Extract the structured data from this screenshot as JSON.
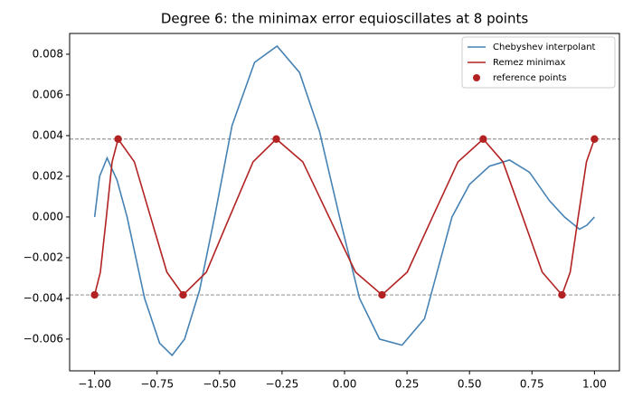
{
  "chart_data": {
    "type": "line",
    "title": "Degree 6: the minimax error equioscillates at 8 points",
    "xlim": [
      -1.1,
      1.1
    ],
    "ylim": [
      -0.00756,
      0.00902
    ],
    "xticks": [
      {
        "value": -1,
        "label": "−1.00"
      },
      {
        "value": -0.75,
        "label": "−0.75"
      },
      {
        "value": -0.5,
        "label": "−0.50"
      },
      {
        "value": -0.25,
        "label": "−0.25"
      },
      {
        "value": 0,
        "label": "0.00"
      },
      0.25,
      {
        "value": 0.5,
        "label": "0.50"
      },
      0.75,
      {
        "value": 1,
        "label": "1.00"
      }
    ],
    "yticks": [
      {
        "value": -0.006,
        "label": "−0.006"
      },
      {
        "value": -0.004,
        "label": "−0.004"
      },
      {
        "value": -0.002,
        "label": "−0.002"
      },
      {
        "value": 0,
        "label": "0.000"
      },
      0.002,
      0.004,
      0.006,
      0.008
    ],
    "hlines": [
      0.00383,
      -0.00383
    ],
    "hline_color": "#808080",
    "legend": "upper right",
    "series": [
      {
        "name": "Chebyshev interpolant",
        "type": "line",
        "color": "#4682b4",
        "x": [
          -1,
          -0.98,
          -0.95,
          -0.91,
          -0.87,
          -0.8,
          -0.74,
          -0.69,
          -0.64,
          -0.58,
          -0.52,
          -0.45,
          -0.36,
          -0.27,
          -0.18,
          -0.1,
          -0.02,
          0.06,
          0.14,
          0.23,
          0.32,
          0.43,
          0.5,
          0.58,
          0.66,
          0.74,
          0.82,
          0.88,
          0.94,
          0.97,
          1
        ],
        "values": [
          0,
          0.002,
          0.0029,
          0.0018,
          0,
          -0.004,
          -0.0062,
          -0.0068,
          -0.006,
          -0.0036,
          0,
          0.0045,
          0.0076,
          0.0084,
          0.0071,
          0.0042,
          0,
          -0.004,
          -0.006,
          -0.0063,
          -0.005,
          0,
          0.0016,
          0.0025,
          0.0028,
          0.0022,
          0.0008,
          0,
          -0.0006,
          -0.0004,
          0
        ]
      },
      {
        "name": "Remez minimax",
        "type": "line",
        "color": "#b22222",
        "x": [
          -1,
          -0.977,
          -0.953,
          -0.93,
          -0.906,
          -0.841,
          -0.776,
          -0.711,
          -0.646,
          -0.553,
          -0.46,
          -0.366,
          -0.273,
          -0.167,
          -0.062,
          0.044,
          0.15,
          0.251,
          0.352,
          0.454,
          0.555,
          0.634,
          0.713,
          0.791,
          0.87,
          0.903,
          0.935,
          0.968,
          1
        ],
        "values": [
          -0.00383,
          -0.00271,
          0,
          0.00271,
          0.00383,
          0.00271,
          0,
          -0.00271,
          -0.00383,
          -0.00271,
          0,
          0.00271,
          0.00383,
          0.00271,
          0,
          -0.00271,
          -0.00383,
          -0.00271,
          0,
          0.00271,
          0.00383,
          0.00271,
          0,
          -0.00271,
          -0.00383,
          -0.00271,
          0,
          0.00271,
          0.00383
        ]
      },
      {
        "name": "reference points",
        "type": "scatter",
        "color": "#b22222",
        "x": [
          -1,
          -0.906,
          -0.646,
          -0.273,
          0.15,
          0.555,
          0.87,
          1
        ],
        "values": [
          -0.00383,
          0.00383,
          -0.00383,
          0.00383,
          -0.00383,
          0.00383,
          -0.00383,
          0.00383
        ]
      }
    ]
  }
}
